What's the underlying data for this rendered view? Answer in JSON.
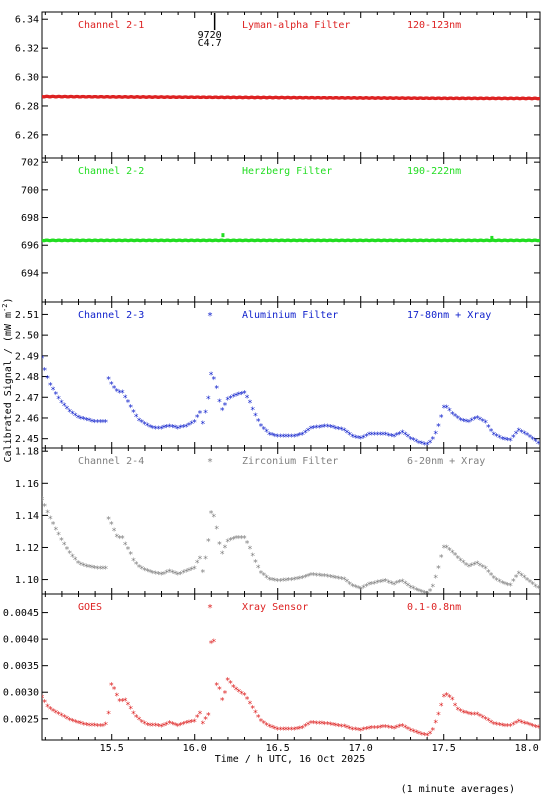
{
  "figure": {
    "ylabel": "Calibrated Signal / (mW m",
    "ylabel_sup": "-2",
    "ylabel_end": ")",
    "xlabel": "Time / h UTC, 16 Oct 2025",
    "footnote": "(1 minute averages)",
    "flare_marker": {
      "time": 16.12,
      "label_line1": "9720",
      "label_line2": "C4.7"
    }
  },
  "chart_data": [
    {
      "type": "scatter",
      "panel": "Channel 2-1",
      "color": "#dd2222",
      "labels": [
        "Channel 2-1",
        "Lyman-alpha Filter",
        "120-123nm"
      ],
      "marker": "",
      "ylim": [
        6.244,
        6.345
      ],
      "yticks": [
        6.26,
        6.28,
        6.3,
        6.32,
        6.34
      ],
      "ytick_labels": [
        "6.26",
        "6.28",
        "6.30",
        "6.32",
        "6.34"
      ],
      "xlim": [
        15.08,
        18.08
      ],
      "mode": "flat",
      "x_range": [
        15.08,
        18.08
      ],
      "baseline": [
        [
          15.08,
          6.2865
        ],
        [
          16.5,
          6.2858
        ],
        [
          17.5,
          6.2853
        ],
        [
          18.08,
          6.2852
        ]
      ]
    },
    {
      "type": "scatter",
      "panel": "Channel 2-2",
      "color": "#22dd22",
      "labels": [
        "Channel 2-2",
        "Herzberg Filter",
        "190-222nm"
      ],
      "marker": "",
      "ylim": [
        691.9,
        702.3
      ],
      "yticks": [
        694,
        696,
        698,
        700,
        702
      ],
      "ytick_labels": [
        "694",
        "696",
        "698",
        "700",
        "702"
      ],
      "xlim": [
        15.08,
        18.08
      ],
      "mode": "flat",
      "x_range": [
        15.08,
        18.08
      ],
      "baseline": [
        [
          15.08,
          696.35
        ],
        [
          18.08,
          696.35
        ]
      ],
      "spikes": [
        [
          16.17,
          696.8
        ],
        [
          17.79,
          696.6
        ]
      ]
    },
    {
      "type": "scatter",
      "panel": "Channel 2-3",
      "color": "#1122cc",
      "labels": [
        "Channel 2-3",
        "Aluminium Filter",
        "17-80nm + Xray"
      ],
      "marker": "*",
      "ylim": [
        2.4455,
        2.516
      ],
      "yticks": [
        2.45,
        2.46,
        2.47,
        2.48,
        2.49,
        2.5,
        2.51
      ],
      "ytick_labels": [
        "2.45",
        "2.46",
        "2.47",
        "2.48",
        "2.49",
        "2.50",
        "2.51"
      ],
      "xlim": [
        15.08,
        18.08
      ],
      "mode": "dense",
      "x_range": [
        15.08,
        18.08
      ],
      "x_step": 0.0167,
      "points": [
        [
          15.08,
          2.489
        ],
        [
          15.1,
          2.482
        ],
        [
          15.13,
          2.476
        ],
        [
          15.16,
          2.472
        ],
        [
          15.2,
          2.467
        ],
        [
          15.25,
          2.463
        ],
        [
          15.3,
          2.46
        ],
        [
          15.35,
          2.459
        ],
        [
          15.4,
          2.458
        ],
        [
          15.45,
          2.458
        ],
        [
          15.47,
          2.458
        ],
        [
          15.48,
          2.479
        ],
        [
          15.5,
          2.476
        ],
        [
          15.52,
          2.474
        ],
        [
          15.54,
          2.472
        ],
        [
          15.56,
          2.473
        ],
        [
          15.58,
          2.47
        ],
        [
          15.61,
          2.466
        ],
        [
          15.63,
          2.463
        ],
        [
          15.66,
          2.459
        ],
        [
          15.7,
          2.457
        ],
        [
          15.75,
          2.455
        ],
        [
          15.8,
          2.455
        ],
        [
          15.85,
          2.456
        ],
        [
          15.9,
          2.455
        ],
        [
          15.95,
          2.456
        ],
        [
          16.0,
          2.458
        ],
        [
          16.03,
          2.463
        ],
        [
          16.05,
          2.457
        ],
        [
          16.08,
          2.468
        ],
        [
          16.1,
          2.482
        ],
        [
          16.12,
          2.478
        ],
        [
          16.14,
          2.472
        ],
        [
          16.16,
          2.463
        ],
        [
          16.2,
          2.469
        ],
        [
          16.25,
          2.471
        ],
        [
          16.3,
          2.472
        ],
        [
          16.33,
          2.468
        ],
        [
          16.36,
          2.462
        ],
        [
          16.4,
          2.456
        ],
        [
          16.45,
          2.452
        ],
        [
          16.5,
          2.451
        ],
        [
          16.6,
          2.451
        ],
        [
          16.65,
          2.452
        ],
        [
          16.7,
          2.455
        ],
        [
          16.8,
          2.456
        ],
        [
          16.9,
          2.454
        ],
        [
          16.95,
          2.451
        ],
        [
          17.0,
          2.45
        ],
        [
          17.05,
          2.452
        ],
        [
          17.1,
          2.452
        ],
        [
          17.15,
          2.452
        ],
        [
          17.2,
          2.451
        ],
        [
          17.25,
          2.453
        ],
        [
          17.3,
          2.45
        ],
        [
          17.35,
          2.448
        ],
        [
          17.4,
          2.447
        ],
        [
          17.43,
          2.449
        ],
        [
          17.46,
          2.454
        ],
        [
          17.48,
          2.459
        ],
        [
          17.5,
          2.465
        ],
        [
          17.52,
          2.465
        ],
        [
          17.55,
          2.462
        ],
        [
          17.6,
          2.459
        ],
        [
          17.65,
          2.458
        ],
        [
          17.7,
          2.46
        ],
        [
          17.75,
          2.458
        ],
        [
          17.8,
          2.452
        ],
        [
          17.85,
          2.45
        ],
        [
          17.9,
          2.449
        ],
        [
          17.95,
          2.454
        ],
        [
          18.0,
          2.452
        ],
        [
          18.05,
          2.449
        ],
        [
          18.08,
          2.447
        ]
      ]
    },
    {
      "type": "scatter",
      "panel": "Channel 2-4",
      "color": "#808080",
      "labels": [
        "Channel 2-4",
        "Zirconium Filter",
        "6-20nm + Xray"
      ],
      "marker": "*",
      "ylim": [
        1.091,
        1.182
      ],
      "yticks": [
        1.1,
        1.12,
        1.14,
        1.16,
        1.18
      ],
      "ytick_labels": [
        "1.10",
        "1.12",
        "1.14",
        "1.16",
        "1.18"
      ],
      "xlim": [
        15.08,
        18.08
      ],
      "mode": "dense",
      "x_range": [
        15.08,
        18.08
      ],
      "x_step": 0.0167,
      "points": [
        [
          15.08,
          1.15
        ],
        [
          15.1,
          1.145
        ],
        [
          15.13,
          1.138
        ],
        [
          15.16,
          1.132
        ],
        [
          15.2,
          1.124
        ],
        [
          15.25,
          1.116
        ],
        [
          15.3,
          1.11
        ],
        [
          15.35,
          1.108
        ],
        [
          15.4,
          1.107
        ],
        [
          15.45,
          1.107
        ],
        [
          15.47,
          1.107
        ],
        [
          15.48,
          1.138
        ],
        [
          15.5,
          1.134
        ],
        [
          15.52,
          1.129
        ],
        [
          15.54,
          1.125
        ],
        [
          15.56,
          1.127
        ],
        [
          15.58,
          1.122
        ],
        [
          15.61,
          1.117
        ],
        [
          15.63,
          1.112
        ],
        [
          15.66,
          1.108
        ],
        [
          15.7,
          1.106
        ],
        [
          15.75,
          1.104
        ],
        [
          15.8,
          1.103
        ],
        [
          15.85,
          1.105
        ],
        [
          15.9,
          1.103
        ],
        [
          15.95,
          1.105
        ],
        [
          16.0,
          1.107
        ],
        [
          16.03,
          1.114
        ],
        [
          16.05,
          1.104
        ],
        [
          16.08,
          1.122
        ],
        [
          16.1,
          1.143
        ],
        [
          16.12,
          1.138
        ],
        [
          16.14,
          1.128
        ],
        [
          16.16,
          1.115
        ],
        [
          16.2,
          1.124
        ],
        [
          16.25,
          1.126
        ],
        [
          16.3,
          1.126
        ],
        [
          16.33,
          1.12
        ],
        [
          16.36,
          1.112
        ],
        [
          16.4,
          1.104
        ],
        [
          16.45,
          1.1
        ],
        [
          16.5,
          1.099
        ],
        [
          16.6,
          1.1
        ],
        [
          16.65,
          1.101
        ],
        [
          16.7,
          1.103
        ],
        [
          16.8,
          1.102
        ],
        [
          16.9,
          1.1
        ],
        [
          16.95,
          1.096
        ],
        [
          17.0,
          1.094
        ],
        [
          17.05,
          1.097
        ],
        [
          17.1,
          1.098
        ],
        [
          17.15,
          1.099
        ],
        [
          17.2,
          1.097
        ],
        [
          17.25,
          1.099
        ],
        [
          17.3,
          1.095
        ],
        [
          17.35,
          1.093
        ],
        [
          17.4,
          1.091
        ],
        [
          17.43,
          1.094
        ],
        [
          17.46,
          1.104
        ],
        [
          17.48,
          1.112
        ],
        [
          17.5,
          1.12
        ],
        [
          17.52,
          1.12
        ],
        [
          17.55,
          1.117
        ],
        [
          17.6,
          1.112
        ],
        [
          17.65,
          1.108
        ],
        [
          17.7,
          1.11
        ],
        [
          17.75,
          1.107
        ],
        [
          17.8,
          1.101
        ],
        [
          17.85,
          1.098
        ],
        [
          17.9,
          1.096
        ],
        [
          17.95,
          1.104
        ],
        [
          18.0,
          1.1
        ],
        [
          18.05,
          1.096
        ],
        [
          18.08,
          1.094
        ]
      ]
    },
    {
      "type": "scatter",
      "panel": "GOES",
      "color": "#dd2222",
      "labels": [
        "GOES",
        "Xray Sensor",
        "0.1-0.8nm"
      ],
      "marker": "*",
      "ylim": [
        0.0021,
        0.00485
      ],
      "yticks": [
        0.0025,
        0.003,
        0.0035,
        0.004,
        0.0045
      ],
      "ytick_labels": [
        "0.0025",
        "0.0030",
        "0.0035",
        "0.0040",
        "0.0045"
      ],
      "xlim": [
        15.08,
        18.08
      ],
      "mode": "dense",
      "x_range": [
        15.08,
        18.08
      ],
      "x_step": 0.0167,
      "points": [
        [
          15.08,
          0.0029
        ],
        [
          15.12,
          0.0027
        ],
        [
          15.16,
          0.00262
        ],
        [
          15.2,
          0.00256
        ],
        [
          15.25,
          0.00247
        ],
        [
          15.3,
          0.00242
        ],
        [
          15.35,
          0.00238
        ],
        [
          15.4,
          0.00237
        ],
        [
          15.45,
          0.00236
        ],
        [
          15.47,
          0.0024
        ],
        [
          15.48,
          0.00257
        ],
        [
          15.5,
          0.00322
        ],
        [
          15.52,
          0.003
        ],
        [
          15.55,
          0.00282
        ],
        [
          15.58,
          0.00285
        ],
        [
          15.61,
          0.00272
        ],
        [
          15.64,
          0.00255
        ],
        [
          15.68,
          0.00244
        ],
        [
          15.72,
          0.00237
        ],
        [
          15.76,
          0.00238
        ],
        [
          15.8,
          0.00235
        ],
        [
          15.85,
          0.00242
        ],
        [
          15.9,
          0.00236
        ],
        [
          15.95,
          0.00242
        ],
        [
          16.0,
          0.00245
        ],
        [
          16.03,
          0.00262
        ],
        [
          16.05,
          0.0024
        ],
        [
          16.07,
          0.00253
        ],
        [
          16.09,
          0.0026
        ],
        [
          16.1,
          0.00413
        ],
        [
          16.11,
          0.00425
        ],
        [
          16.13,
          0.00315
        ],
        [
          16.15,
          0.00305
        ],
        [
          16.17,
          0.0028
        ],
        [
          16.2,
          0.00325
        ],
        [
          16.23,
          0.0031
        ],
        [
          16.27,
          0.003
        ],
        [
          16.3,
          0.00295
        ],
        [
          16.33,
          0.0028
        ],
        [
          16.36,
          0.00265
        ],
        [
          16.4,
          0.00245
        ],
        [
          16.45,
          0.00235
        ],
        [
          16.5,
          0.0023
        ],
        [
          16.6,
          0.0023
        ],
        [
          16.65,
          0.00233
        ],
        [
          16.7,
          0.00242
        ],
        [
          16.8,
          0.0024
        ],
        [
          16.9,
          0.00235
        ],
        [
          16.95,
          0.0023
        ],
        [
          17.0,
          0.00228
        ],
        [
          17.05,
          0.00232
        ],
        [
          17.1,
          0.00233
        ],
        [
          17.15,
          0.00235
        ],
        [
          17.2,
          0.00232
        ],
        [
          17.25,
          0.00237
        ],
        [
          17.3,
          0.00228
        ],
        [
          17.35,
          0.00222
        ],
        [
          17.4,
          0.00218
        ],
        [
          17.43,
          0.00225
        ],
        [
          17.46,
          0.0025
        ],
        [
          17.48,
          0.0027
        ],
        [
          17.5,
          0.00292
        ],
        [
          17.52,
          0.00295
        ],
        [
          17.55,
          0.00287
        ],
        [
          17.58,
          0.00268
        ],
        [
          17.62,
          0.00262
        ],
        [
          17.66,
          0.00258
        ],
        [
          17.7,
          0.00258
        ],
        [
          17.75,
          0.0025
        ],
        [
          17.8,
          0.0024
        ],
        [
          17.85,
          0.00237
        ],
        [
          17.9,
          0.00236
        ],
        [
          17.95,
          0.00245
        ],
        [
          18.0,
          0.0024
        ],
        [
          18.05,
          0.00235
        ],
        [
          18.08,
          0.00233
        ]
      ]
    }
  ],
  "x_axis": {
    "ticks": [
      15.5,
      16.0,
      16.5,
      17.0,
      17.5,
      18.0
    ],
    "tick_labels": [
      "15.5",
      "16.0",
      "16.5",
      "17.0",
      "17.5",
      "18.0"
    ],
    "minor_step": 0.1,
    "xlim": [
      15.08,
      18.08
    ]
  }
}
